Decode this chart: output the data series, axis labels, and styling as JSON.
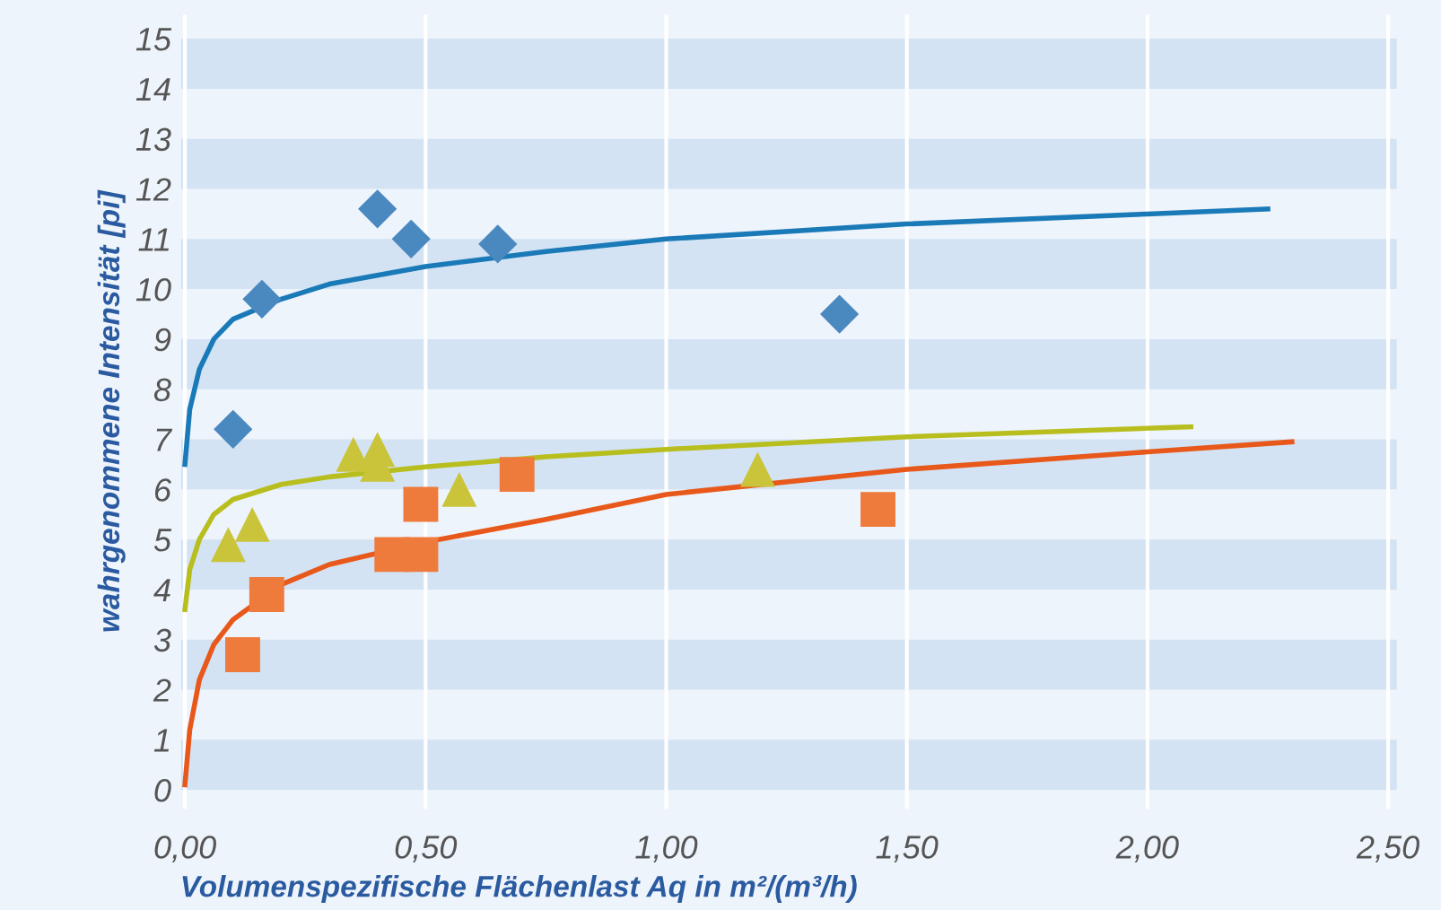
{
  "chart_data": {
    "type": "scatter",
    "xlabel": "Volumenspezifische Flächenlast Aq in m²/(m³/h)",
    "ylabel": "wahrgenommene Intensität [pi]",
    "xlim": [
      -0.01,
      2.52
    ],
    "ylim": [
      -0.4,
      15.5
    ],
    "xticks": [
      {
        "value": 0,
        "label": "0,00"
      },
      {
        "value": 0.5,
        "label": "0,50"
      },
      {
        "value": 1.0,
        "label": "1,00"
      },
      {
        "value": 1.5,
        "label": "1,50"
      },
      {
        "value": 2.0,
        "label": "2,00"
      },
      {
        "value": 2.5,
        "label": "2,50"
      }
    ],
    "yticks": [
      0,
      1,
      2,
      3,
      4,
      5,
      6,
      7,
      8,
      9,
      10,
      11,
      12,
      13,
      14,
      15
    ],
    "grid": "x",
    "legend": false,
    "bands": [
      {
        "axis": "y",
        "from": 0,
        "to": 1,
        "color": "#d3e3f3"
      },
      {
        "axis": "y",
        "from": 2,
        "to": 3,
        "color": "#d3e3f3"
      },
      {
        "axis": "y",
        "from": 4,
        "to": 5,
        "color": "#d3e3f3"
      },
      {
        "axis": "y",
        "from": 6,
        "to": 7,
        "color": "#d3e3f3"
      },
      {
        "axis": "y",
        "from": 8,
        "to": 9,
        "color": "#d3e3f3"
      },
      {
        "axis": "y",
        "from": 10,
        "to": 11,
        "color": "#d3e3f3"
      },
      {
        "axis": "y",
        "from": 12,
        "to": 13,
        "color": "#d3e3f3"
      },
      {
        "axis": "y",
        "from": 14,
        "to": 15,
        "color": "#d3e3f3"
      }
    ],
    "series": [
      {
        "marker": "diamond",
        "color": "#4a88c0",
        "x": [
          0.1,
          0.16,
          0.4,
          0.47,
          0.65,
          1.36
        ],
        "values": [
          7.2,
          9.8,
          11.6,
          11.0,
          10.9,
          9.5
        ]
      },
      {
        "marker": "triangle",
        "color": "#c9c43a",
        "x": [
          0.09,
          0.14,
          0.35,
          0.4,
          0.4,
          0.57,
          1.19
        ],
        "values": [
          4.9,
          5.3,
          6.7,
          6.8,
          6.5,
          6.0,
          6.4
        ]
      },
      {
        "marker": "square",
        "color": "#ee7a3c",
        "x": [
          0.12,
          0.17,
          0.43,
          0.49,
          0.49,
          0.69,
          1.44
        ],
        "values": [
          2.7,
          3.9,
          4.7,
          5.7,
          4.7,
          6.3,
          5.6
        ]
      },
      {
        "type": "line",
        "marker": "none",
        "color": "#1a7ab8",
        "x": [
          0.0,
          0.01,
          0.03,
          0.06,
          0.1,
          0.2,
          0.3,
          0.5,
          0.75,
          1.0,
          1.5,
          2.0,
          2.25
        ],
        "values": [
          6.5,
          7.6,
          8.4,
          9.0,
          9.4,
          9.8,
          10.1,
          10.45,
          10.75,
          11.0,
          11.3,
          11.5,
          11.6
        ]
      },
      {
        "type": "line",
        "marker": "none",
        "color": "#b8be1e",
        "x": [
          0.0,
          0.01,
          0.03,
          0.06,
          0.1,
          0.2,
          0.3,
          0.5,
          0.75,
          1.0,
          1.5,
          2.09
        ],
        "values": [
          3.6,
          4.4,
          5.0,
          5.5,
          5.8,
          6.1,
          6.25,
          6.45,
          6.65,
          6.8,
          7.05,
          7.25
        ]
      },
      {
        "type": "line",
        "marker": "none",
        "color": "#e8581a",
        "x": [
          0.0,
          0.01,
          0.03,
          0.06,
          0.1,
          0.2,
          0.3,
          0.5,
          0.75,
          1.0,
          1.5,
          2.0,
          2.3
        ],
        "values": [
          0.1,
          1.2,
          2.2,
          2.9,
          3.4,
          4.1,
          4.5,
          4.95,
          5.4,
          5.9,
          6.4,
          6.75,
          6.95
        ]
      }
    ]
  }
}
